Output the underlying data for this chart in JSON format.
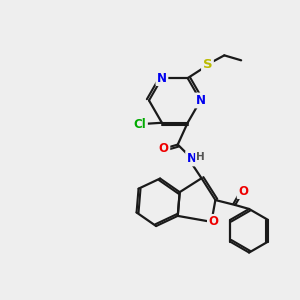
{
  "background_color": "#eeeeee",
  "bond_color": "#1a1a1a",
  "atom_colors": {
    "N": "#0000ee",
    "O": "#ee0000",
    "Cl": "#00aa00",
    "S": "#bbbb00",
    "C": "#1a1a1a",
    "H": "#555555"
  },
  "figsize": [
    3.0,
    3.0
  ],
  "dpi": 100
}
